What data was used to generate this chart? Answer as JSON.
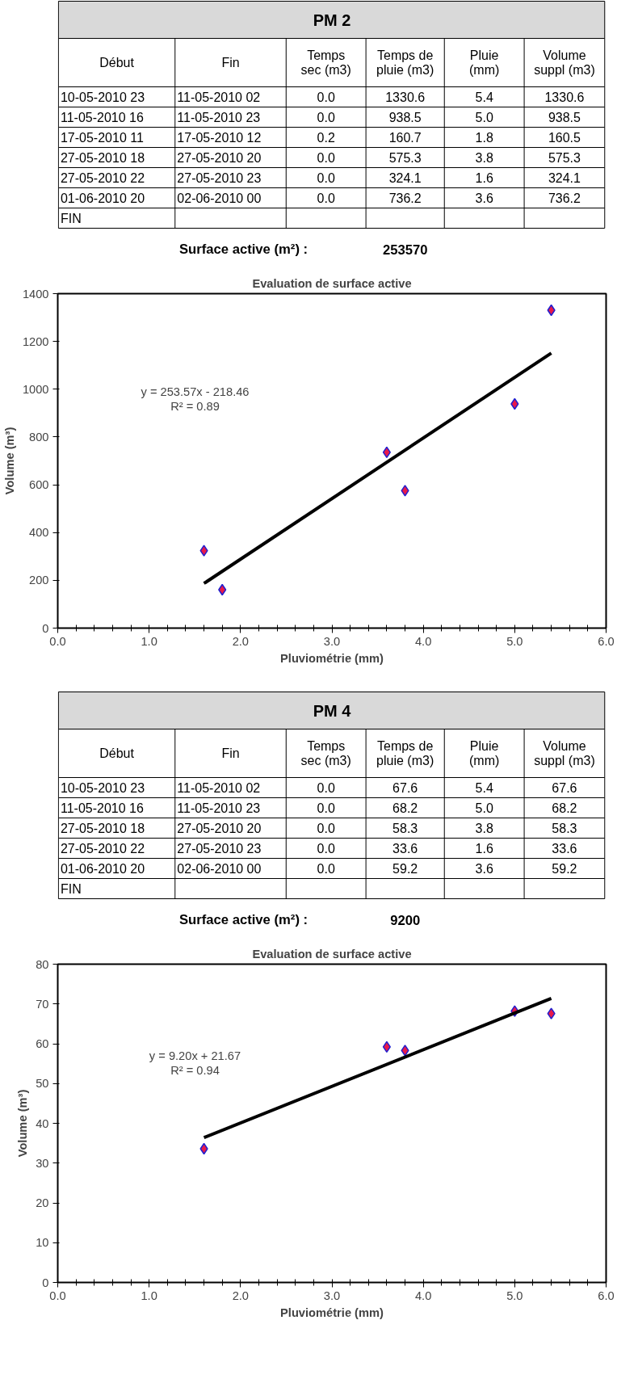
{
  "chart_data": [
    {
      "type": "other",
      "title": "PM 2",
      "annotations": [
        "Début",
        "Fin",
        "Temps\nsec (m3)",
        "Temps de\npluie (m3)",
        "Pluie\n(mm)",
        "Volume\nsuppl (m3)",
        "10-05-2010 23",
        "11-05-2010 02",
        "0.0",
        "1330.6",
        "5.4",
        "1330.6",
        "11-05-2010 16",
        "11-05-2010 23",
        "0.0",
        "938.5",
        "5.0",
        "938.5",
        "17-05-2010 11",
        "17-05-2010 12",
        "0.2",
        "160.7",
        "1.8",
        "160.5",
        "27-05-2010 18",
        "27-05-2010 20",
        "0.0",
        "575.3",
        "3.8",
        "575.3",
        "27-05-2010 22",
        "27-05-2010 23",
        "0.0",
        "324.1",
        "1.6",
        "324.1",
        "01-06-2010 20",
        "02-06-2010 00",
        "0.0",
        "736.2",
        "3.6",
        "736.2",
        "FIN",
        null,
        null,
        null,
        null,
        null,
        null,
        "Surface active (m²) :",
        null,
        "253570",
        null,
        null
      ]
    },
    {
      "type": "scatter",
      "title": "Evaluation de surface active",
      "xlabel": "Pluviométrie (mm)",
      "ylabel": "Volume (m³)",
      "grid": false,
      "xlim": [
        0,
        6
      ],
      "xticks": [
        {
          "value": 0,
          "label": "0.0"
        },
        {
          "value": 1,
          "label": "1.0"
        },
        {
          "value": 2,
          "label": "2.0"
        },
        {
          "value": 3,
          "label": "3.0"
        },
        {
          "value": 4,
          "label": "4.0"
        },
        {
          "value": 5,
          "label": "5.0"
        },
        {
          "value": 6,
          "label": "6.0"
        }
      ],
      "ylim": [
        0,
        1400
      ],
      "yticks": [
        0,
        200,
        400,
        600,
        800,
        1000,
        1200,
        1400
      ],
      "annotations": [
        "y = 253.57x - 218.46",
        "R² = 0.89"
      ],
      "series": [
        {
          "type": "scatter",
          "marker": "diamond",
          "color": "#e8194a",
          "x": [
            5.4,
            5.0,
            1.8,
            3.8,
            1.6,
            3.6
          ],
          "values": [
            1330.6,
            938.5,
            160.5,
            575.3,
            324.1,
            736.2
          ]
        },
        {
          "type": "line",
          "color": "#000000",
          "x": [
            1.6,
            5.4
          ],
          "values": [
            187,
            1151
          ]
        }
      ]
    },
    {
      "type": "other",
      "title": "PM 4",
      "annotations": [
        "Début",
        "Fin",
        "Temps\nsec (m3)",
        "Temps de\npluie (m3)",
        "Pluie\n(mm)",
        "Volume\nsuppl (m3)",
        "10-05-2010 23",
        "11-05-2010 02",
        "0.0",
        "67.6",
        "5.4",
        "67.6",
        "11-05-2010 16",
        "11-05-2010 23",
        "0.0",
        "68.2",
        "5.0",
        "68.2",
        "27-05-2010 18",
        "27-05-2010 20",
        "0.0",
        "58.3",
        "3.8",
        "58.3",
        "27-05-2010 22",
        "27-05-2010 23",
        "0.0",
        "33.6",
        "1.6",
        "33.6",
        "01-06-2010 20",
        "02-06-2010 00",
        "0.0",
        "59.2",
        "3.6",
        "59.2",
        "FIN",
        null,
        null,
        null,
        null,
        null,
        null,
        "Surface active (m²) :",
        null,
        "9200",
        null,
        null
      ]
    },
    {
      "type": "scatter",
      "title": "Evaluation de surface active",
      "xlabel": "Pluviométrie (mm)",
      "ylabel": "Volume (m³)",
      "grid": false,
      "xlim": [
        0,
        6
      ],
      "xticks": [
        {
          "value": 0,
          "label": "0.0"
        },
        {
          "value": 1,
          "label": "1.0"
        },
        {
          "value": 2,
          "label": "2.0"
        },
        {
          "value": 3,
          "label": "3.0"
        },
        {
          "value": 4,
          "label": "4.0"
        },
        {
          "value": 5,
          "label": "5.0"
        },
        {
          "value": 6,
          "label": "6.0"
        }
      ],
      "ylim": [
        0,
        80
      ],
      "yticks": [
        0,
        10,
        20,
        30,
        40,
        50,
        60,
        70,
        80
      ],
      "annotations": [
        "y = 9.20x + 21.67",
        "R² = 0.94"
      ],
      "series": [
        {
          "type": "scatter",
          "marker": "diamond",
          "color": "#e8194a",
          "x": [
            5.4,
            5.0,
            3.8,
            1.6,
            3.6
          ],
          "values": [
            67.6,
            68.2,
            58.3,
            33.6,
            59.2
          ]
        },
        {
          "type": "line",
          "color": "#000000",
          "x": [
            1.6,
            5.4
          ],
          "values": [
            36.4,
            71.4
          ]
        }
      ]
    }
  ]
}
